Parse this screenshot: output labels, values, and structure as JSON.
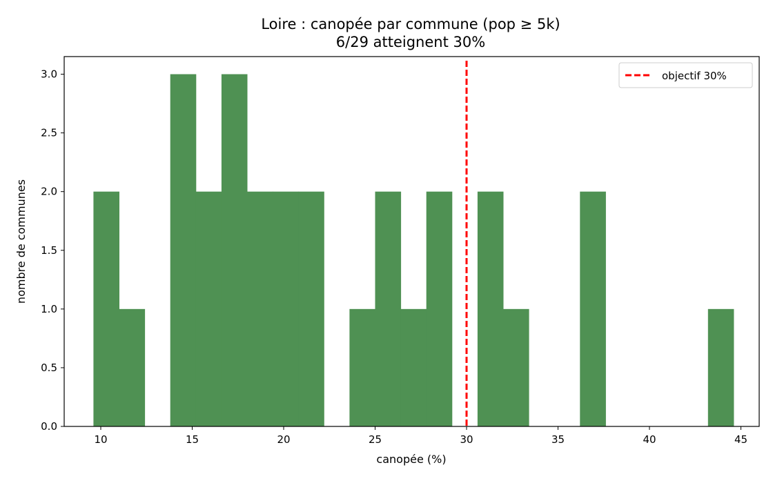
{
  "chart_data": {
    "type": "bar",
    "title": "Loire : canopée par commune (pop ≥ 5k)",
    "subtitle": "6/29 atteignent 30%",
    "xlabel": "canopée (%)",
    "ylabel": "nombre de communes",
    "xlim": [
      8,
      46
    ],
    "ylim": [
      0,
      3.15
    ],
    "xticks": [
      "10",
      "15",
      "20",
      "25",
      "30",
      "35",
      "40",
      "45"
    ],
    "yticks": [
      "0.0",
      "0.5",
      "1.0",
      "1.5",
      "2.0",
      "2.5",
      "3.0"
    ],
    "bin_edges": [
      9.6,
      11.0,
      12.4,
      13.8,
      15.2,
      16.6,
      18.0,
      19.4,
      20.8,
      22.2,
      23.6,
      25.0,
      26.4,
      27.8,
      29.2,
      30.6,
      32.0,
      33.4,
      34.8,
      36.2,
      37.6,
      39.0,
      40.4,
      41.8,
      43.2,
      44.6
    ],
    "counts": [
      2,
      1,
      0,
      3,
      2,
      3,
      2,
      2,
      2,
      0,
      1,
      2,
      1,
      2,
      0,
      2,
      1,
      0,
      0,
      2,
      0,
      0,
      0,
      0,
      1
    ],
    "bar_color": "#4f9153",
    "reference_line": {
      "x": 30,
      "label": "objectif 30%",
      "color": "#ff0000",
      "style": "dashed"
    },
    "legend_position": "top-right",
    "grid": false
  }
}
